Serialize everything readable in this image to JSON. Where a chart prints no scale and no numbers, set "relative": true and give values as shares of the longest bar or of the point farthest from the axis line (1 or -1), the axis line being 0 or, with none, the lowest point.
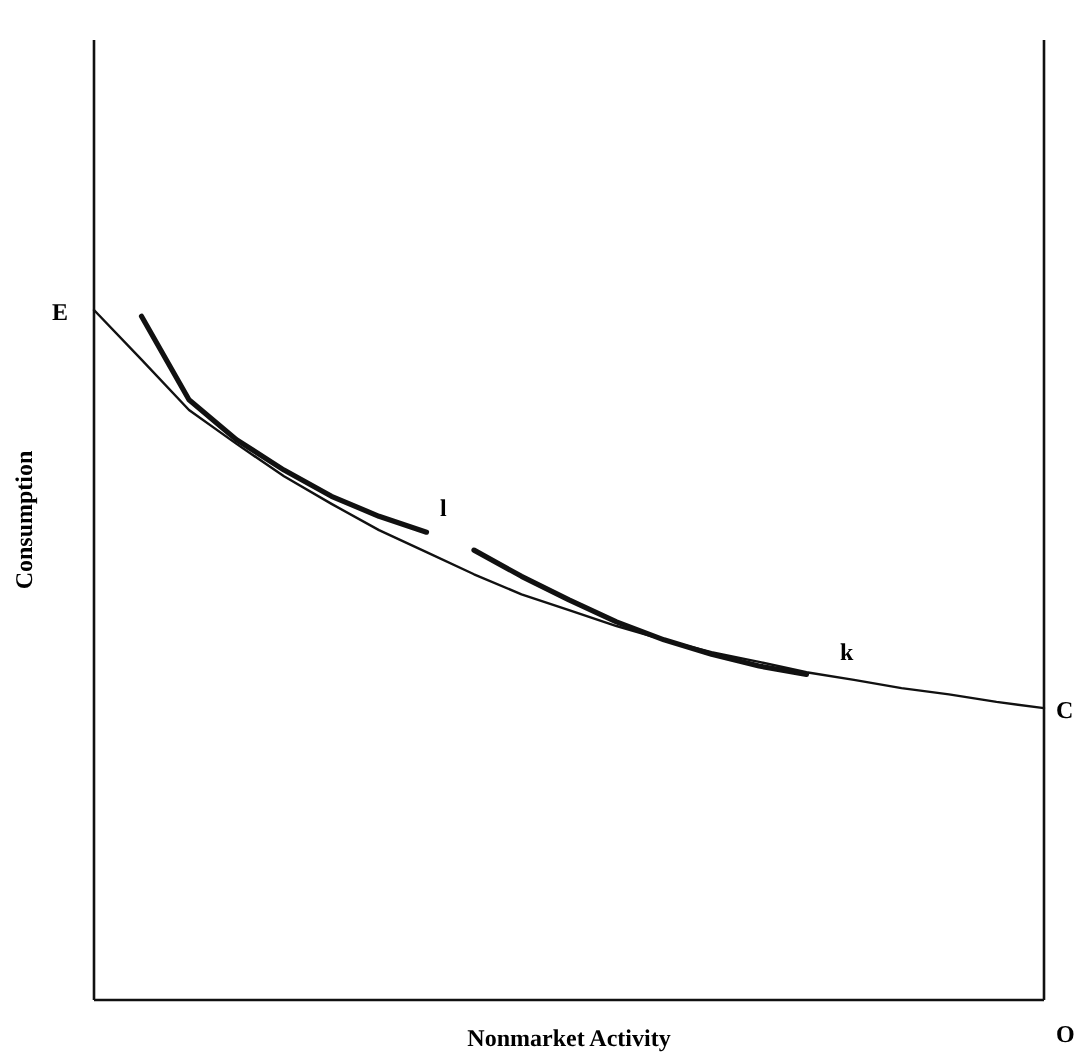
{
  "chart_data": {
    "type": "line",
    "relative": true,
    "xlabel": "Nonmarket Activity",
    "ylabel": "Consumption",
    "marker": "none",
    "line_style": "solid",
    "categories": [
      null,
      null,
      null,
      null,
      null,
      null,
      null,
      null,
      null,
      null,
      null,
      null,
      null,
      null,
      null,
      null,
      null,
      null,
      null,
      null,
      null
    ],
    "series": [
      {
        "color": "#111111",
        "values": [
          1,
          0.928,
          0.855,
          0.806,
          0.759,
          0.719,
          0.681,
          0.649,
          0.617,
          0.588,
          0.565,
          0.542,
          0.522,
          0.504,
          0.49,
          0.475,
          0.464,
          0.452,
          0.443,
          0.432,
          0.423
        ]
      },
      {
        "color": "#111111",
        "values": [
          null,
          0.991,
          0.87,
          0.812,
          0.768,
          0.73,
          0.701,
          0.678,
          null,
          null,
          null,
          null,
          null,
          null,
          null,
          null,
          null,
          null,
          null,
          null,
          null
        ]
      },
      {
        "color": "#111111",
        "values": [
          null,
          null,
          null,
          null,
          null,
          null,
          null,
          null,
          0.652,
          0.614,
          0.58,
          0.548,
          0.522,
          0.501,
          0.484,
          0.472,
          null,
          null,
          null,
          null,
          null
        ]
      }
    ],
    "annotations": [
      "E",
      "l",
      "k",
      "C",
      "O"
    ]
  }
}
